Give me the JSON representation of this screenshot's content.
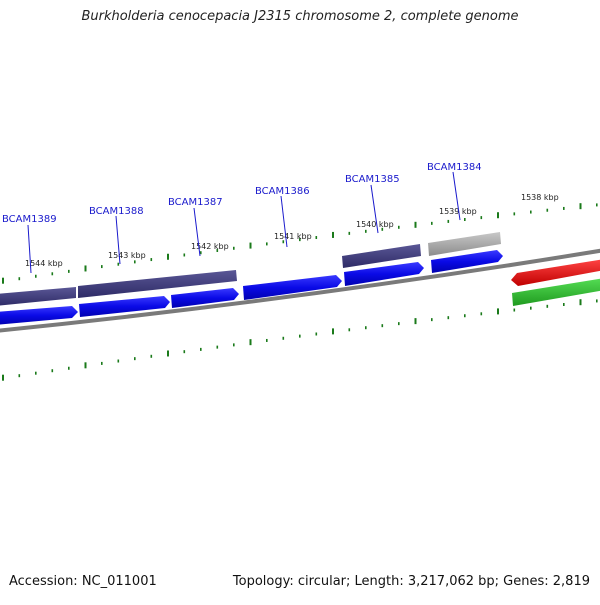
{
  "title": "Burkholderia cenocepacia J2315 chromosome 2, complete genome",
  "footer": {
    "accession": "Accession: NC_011001",
    "summary": "Topology: circular; Length: 3,217,062 bp; Genes: 2,819"
  },
  "kbp_labels": [
    "1544 kbp",
    "1543 kbp",
    "1542 kbp",
    "1541 kbp",
    "1540 kbp",
    "1539 kbp",
    "1538 kbp"
  ],
  "gene_labels": [
    "BCAM1389",
    "BCAM1388",
    "BCAM1387",
    "BCAM1386",
    "BCAM1385",
    "BCAM1384"
  ],
  "colors": {
    "cds_blue": "#0a0ae6",
    "gene_purple": "#3f3c7c",
    "gene_gray": "#a9a9a9",
    "backbone": "#7a7a7a",
    "tick_green": "#1a7a1a",
    "red_feature": "#e60000",
    "green_feature": "#2fbf2f"
  }
}
